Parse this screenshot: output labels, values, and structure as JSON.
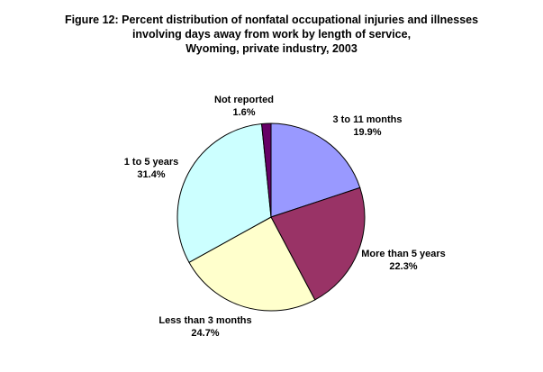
{
  "chart_data": {
    "type": "pie",
    "title_lines": [
      "Figure 12: Percent distribution of nonfatal occupational injuries and illnesses",
      "involving days away from work by length of service,",
      "Wyoming, private industry, 2003"
    ],
    "slices": [
      {
        "label": "3 to 11 months",
        "value": 19.9,
        "value_text": "19.9%",
        "color": "#9999ff"
      },
      {
        "label": "More than 5 years",
        "value": 22.3,
        "value_text": "22.3%",
        "color": "#993366"
      },
      {
        "label": "Less than 3 months",
        "value": 24.7,
        "value_text": "24.7%",
        "color": "#ffffcc"
      },
      {
        "label": "1 to 5 years",
        "value": 31.4,
        "value_text": "31.4%",
        "color": "#ccffff"
      },
      {
        "label": "Not reported",
        "value": 1.6,
        "value_text": "1.6%",
        "color": "#660066"
      }
    ]
  }
}
